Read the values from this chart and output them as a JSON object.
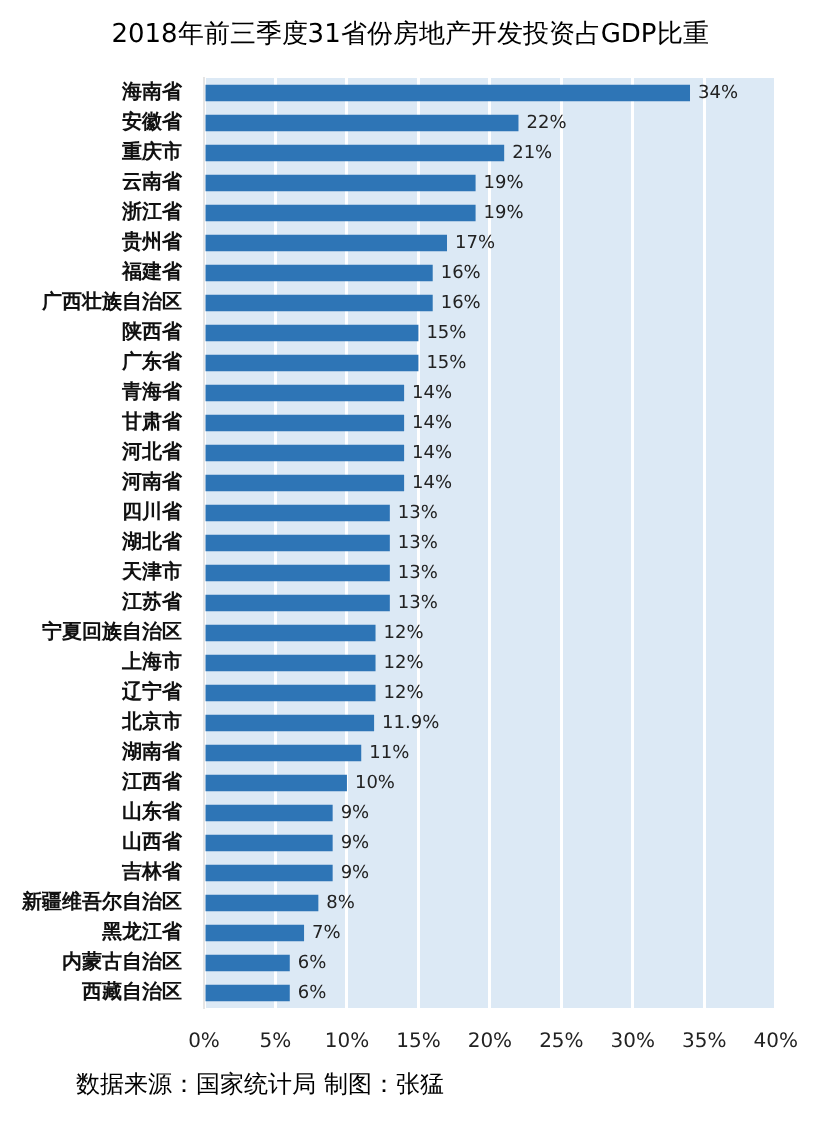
{
  "chart_data": {
    "type": "bar",
    "orientation": "horizontal",
    "title": "2018年前三季度31省份房地产开发投资占GDP比重",
    "categories": [
      "海南省",
      "安徽省",
      "重庆市",
      "云南省",
      "浙江省",
      "贵州省",
      "福建省",
      "广西壮族自治区",
      "陕西省",
      "广东省",
      "青海省",
      "甘肃省",
      "河北省",
      "河南省",
      "四川省",
      "湖北省",
      "天津市",
      "江苏省",
      "宁夏回族自治区",
      "上海市",
      "辽宁省",
      "北京市",
      "湖南省",
      "江西省",
      "山东省",
      "山西省",
      "吉林省",
      "新疆维吾尔自治区",
      "黑龙江省",
      "内蒙古自治区",
      "西藏自治区"
    ],
    "values": [
      34,
      22,
      21,
      19,
      19,
      17,
      16,
      16,
      15,
      15,
      14,
      14,
      14,
      14,
      13,
      13,
      13,
      13,
      12,
      12,
      12,
      11.9,
      11,
      10,
      9,
      9,
      9,
      8,
      7,
      6,
      6
    ],
    "value_labels": [
      "34%",
      "22%",
      "21%",
      "19%",
      "19%",
      "17%",
      "16%",
      "16%",
      "15%",
      "15%",
      "14%",
      "14%",
      "14%",
      "14%",
      "13%",
      "13%",
      "13%",
      "13%",
      "12%",
      "12%",
      "12%",
      "11.9%",
      "11%",
      "10%",
      "9%",
      "9%",
      "9%",
      "8%",
      "7%",
      "6%",
      "6%"
    ],
    "color": "#2e75b6",
    "xlim": [
      0,
      40
    ],
    "xticks": [
      {
        "value": 0,
        "label": "0%"
      },
      {
        "value": 5,
        "label": "5%"
      },
      {
        "value": 10,
        "label": "10%"
      },
      {
        "value": 15,
        "label": "15%"
      },
      {
        "value": 20,
        "label": "20%"
      },
      {
        "value": 25,
        "label": "25%"
      },
      {
        "value": 30,
        "label": "30%"
      },
      {
        "value": 35,
        "label": "35%"
      },
      {
        "value": 40,
        "label": "40%"
      }
    ],
    "grid": "x",
    "annotations": [
      "数据来源：国家统计局    制图：张猛"
    ]
  }
}
